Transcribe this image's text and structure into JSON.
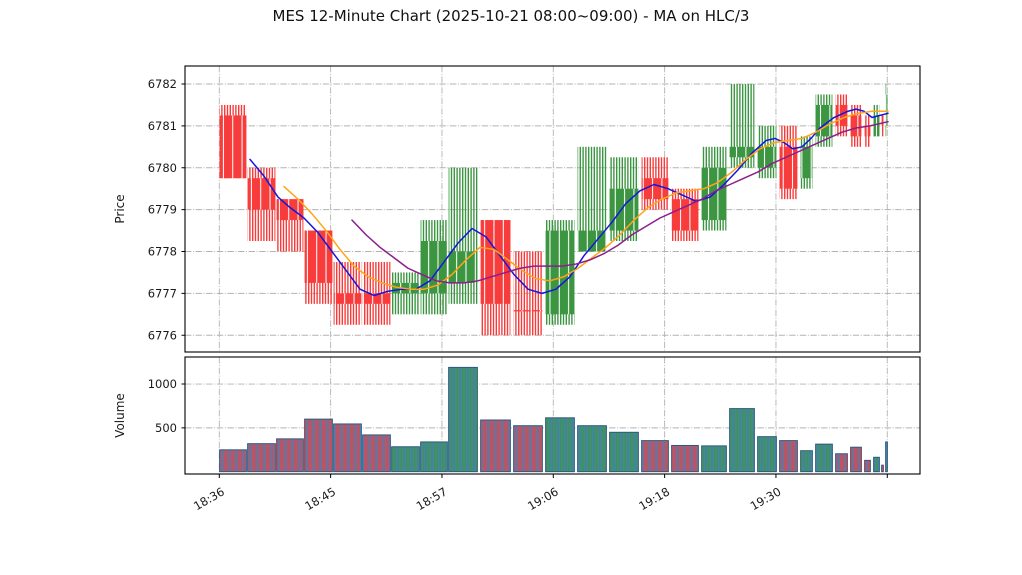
{
  "title": "MES 12-Minute Chart (2025-10-21 08:00~09:00) - MA on HLC/3",
  "price_axis": {
    "label": "Price",
    "ticks": [
      6776,
      6777,
      6778,
      6779,
      6780,
      6781,
      6782
    ]
  },
  "volume_axis": {
    "label": "Volume",
    "ticks": [
      500,
      1000
    ]
  },
  "x_axis": {
    "labels": [
      "18:36",
      "18:45",
      "18:57",
      "19:06",
      "19:18",
      "19:30"
    ],
    "unlabeled_extra_tick": true
  },
  "colors": {
    "up": "#3c9641",
    "down": "#f83b3b",
    "volume_fill": "#4682b4",
    "volume_edge": "#28547e",
    "ma_fast": "#1515dd",
    "ma_mid": "#ffa418",
    "ma_slow": "#8c1e8c",
    "grid": "#b3b3b3",
    "text": "#1a1a1a",
    "spine": "#000000"
  },
  "chart_data": {
    "type": "candlestick_with_volume",
    "title": "MES 12-Minute Chart (2025-10-21 08:00~09:00) - MA on HLC/3",
    "ylabel_price": "Price",
    "ylabel_volume": "Volume",
    "price_ylim": [
      6775.6,
      6782.43
    ],
    "volume_ylim": [
      -26,
      1308
    ],
    "grid": "dashdot",
    "candle_columns": [
      "x_px",
      "width_px",
      "dir",
      "open",
      "high",
      "low",
      "close",
      "volume"
    ],
    "candles": [
      [
        219,
        28,
        "d",
        6781.25,
        6781.5,
        6779.75,
        6779.75,
        250
      ],
      [
        247,
        29,
        "d",
        6779.75,
        6780.0,
        6778.25,
        6779.0,
        320
      ],
      [
        276,
        28,
        "d",
        6779.25,
        6779.25,
        6778.0,
        6778.75,
        375
      ],
      [
        304,
        29,
        "d",
        6778.5,
        6778.5,
        6776.75,
        6777.25,
        600
      ],
      [
        333,
        29,
        "d",
        6777.0,
        6777.75,
        6776.25,
        6776.75,
        545
      ],
      [
        362,
        29,
        "d",
        6777.0,
        6777.75,
        6776.25,
        6776.75,
        420
      ],
      [
        391,
        29,
        "u",
        6777.0,
        6777.5,
        6776.5,
        6777.25,
        285
      ],
      [
        420,
        28,
        "u",
        6777.0,
        6778.75,
        6776.5,
        6778.25,
        340
      ],
      [
        448,
        30,
        "u",
        6777.25,
        6780.0,
        6776.75,
        6778.0,
        1190
      ],
      [
        480,
        31,
        "d",
        6778.75,
        6778.75,
        6776.0,
        6776.75,
        590
      ],
      [
        513,
        30,
        "d",
        6776.6,
        6778.0,
        6776.0,
        6776.6,
        525
      ],
      [
        545,
        30,
        "u",
        6776.5,
        6778.75,
        6776.25,
        6778.5,
        615
      ],
      [
        577,
        30,
        "u",
        6778.0,
        6780.5,
        6778.0,
        6778.5,
        525
      ],
      [
        609,
        30,
        "u",
        6778.5,
        6780.25,
        6778.25,
        6779.5,
        450
      ],
      [
        641,
        28,
        "d",
        6779.75,
        6780.25,
        6779.0,
        6779.25,
        355
      ],
      [
        671,
        28,
        "d",
        6779.25,
        6779.5,
        6778.25,
        6778.5,
        300
      ],
      [
        701,
        26,
        "u",
        6778.75,
        6780.5,
        6778.5,
        6780.0,
        295
      ],
      [
        729,
        26,
        "u",
        6780.25,
        6782.0,
        6780.0,
        6780.5,
        720
      ],
      [
        757,
        20,
        "u",
        6780.0,
        6781.0,
        6779.75,
        6780.5,
        400
      ],
      [
        779,
        19,
        "d",
        6780.5,
        6781.0,
        6779.25,
        6779.5,
        355
      ],
      [
        800,
        13,
        "u",
        6779.75,
        6780.75,
        6779.5,
        6780.5,
        240
      ],
      [
        815,
        18,
        "u",
        6780.75,
        6781.75,
        6780.5,
        6781.5,
        315
      ],
      [
        835,
        13,
        "d",
        6781.5,
        6781.75,
        6780.75,
        6781.0,
        205
      ],
      [
        850,
        12,
        "d",
        6781.25,
        6781.5,
        6780.5,
        6780.75,
        280
      ],
      [
        864,
        7,
        "d",
        6781.0,
        6781.25,
        6780.5,
        6780.75,
        130
      ],
      [
        873,
        7,
        "u",
        6780.75,
        6781.5,
        6780.75,
        6781.25,
        165
      ],
      [
        881,
        3,
        "d",
        6781.25,
        6781.25,
        6780.75,
        6781.0,
        75
      ],
      [
        885,
        3,
        "u",
        6781.0,
        6782.0,
        6780.75,
        6781.75,
        340
      ]
    ],
    "ma_series": [
      {
        "name": "ma-fast",
        "color_key": "ma_fast",
        "points": [
          [
            250,
            6780.2
          ],
          [
            264,
            6779.8
          ],
          [
            278,
            6779.3
          ],
          [
            290,
            6779.05
          ],
          [
            304,
            6778.8
          ],
          [
            318,
            6778.45
          ],
          [
            332,
            6778.0
          ],
          [
            346,
            6777.55
          ],
          [
            360,
            6777.1
          ],
          [
            374,
            6776.95
          ],
          [
            388,
            6777.05
          ],
          [
            402,
            6777.1
          ],
          [
            416,
            6777.1
          ],
          [
            430,
            6777.3
          ],
          [
            444,
            6777.75
          ],
          [
            458,
            6778.2
          ],
          [
            472,
            6778.55
          ],
          [
            486,
            6778.35
          ],
          [
            500,
            6777.9
          ],
          [
            514,
            6777.45
          ],
          [
            528,
            6777.1
          ],
          [
            542,
            6777.0
          ],
          [
            556,
            6777.1
          ],
          [
            570,
            6777.4
          ],
          [
            584,
            6777.9
          ],
          [
            598,
            6778.3
          ],
          [
            612,
            6778.7
          ],
          [
            626,
            6779.15
          ],
          [
            640,
            6779.45
          ],
          [
            654,
            6779.6
          ],
          [
            668,
            6779.5
          ],
          [
            682,
            6779.35
          ],
          [
            696,
            6779.2
          ],
          [
            710,
            6779.3
          ],
          [
            724,
            6779.6
          ],
          [
            738,
            6779.95
          ],
          [
            752,
            6780.35
          ],
          [
            766,
            6780.65
          ],
          [
            775,
            6780.7
          ],
          [
            784,
            6780.6
          ],
          [
            793,
            6780.45
          ],
          [
            802,
            6780.5
          ],
          [
            811,
            6780.7
          ],
          [
            820,
            6780.95
          ],
          [
            834,
            6781.2
          ],
          [
            848,
            6781.35
          ],
          [
            856,
            6781.4
          ],
          [
            864,
            6781.35
          ],
          [
            872,
            6781.2
          ],
          [
            880,
            6781.25
          ],
          [
            888,
            6781.3
          ]
        ]
      },
      {
        "name": "ma-mid",
        "color_key": "ma_mid",
        "points": [
          [
            284,
            6779.55
          ],
          [
            298,
            6779.25
          ],
          [
            312,
            6778.9
          ],
          [
            326,
            6778.5
          ],
          [
            340,
            6778.05
          ],
          [
            354,
            6777.65
          ],
          [
            368,
            6777.4
          ],
          [
            382,
            6777.25
          ],
          [
            396,
            6777.15
          ],
          [
            410,
            6777.1
          ],
          [
            424,
            6777.1
          ],
          [
            438,
            6777.2
          ],
          [
            452,
            6777.45
          ],
          [
            466,
            6777.8
          ],
          [
            480,
            6778.1
          ],
          [
            494,
            6778.05
          ],
          [
            508,
            6777.8
          ],
          [
            522,
            6777.55
          ],
          [
            536,
            6777.35
          ],
          [
            550,
            6777.3
          ],
          [
            564,
            6777.4
          ],
          [
            578,
            6777.6
          ],
          [
            592,
            6777.85
          ],
          [
            606,
            6778.1
          ],
          [
            620,
            6778.4
          ],
          [
            634,
            6778.75
          ],
          [
            648,
            6779.05
          ],
          [
            662,
            6779.25
          ],
          [
            676,
            6779.4
          ],
          [
            690,
            6779.45
          ],
          [
            704,
            6779.5
          ],
          [
            718,
            6779.65
          ],
          [
            732,
            6779.9
          ],
          [
            746,
            6780.2
          ],
          [
            760,
            6780.45
          ],
          [
            774,
            6780.6
          ],
          [
            788,
            6780.65
          ],
          [
            802,
            6780.7
          ],
          [
            816,
            6780.85
          ],
          [
            830,
            6781.05
          ],
          [
            844,
            6781.2
          ],
          [
            858,
            6781.3
          ],
          [
            872,
            6781.35
          ],
          [
            888,
            6781.35
          ]
        ]
      },
      {
        "name": "ma-slow",
        "color_key": "ma_slow",
        "points": [
          [
            352,
            6778.75
          ],
          [
            366,
            6778.4
          ],
          [
            380,
            6778.1
          ],
          [
            394,
            6777.85
          ],
          [
            408,
            6777.6
          ],
          [
            422,
            6777.45
          ],
          [
            436,
            6777.3
          ],
          [
            450,
            6777.25
          ],
          [
            464,
            6777.25
          ],
          [
            478,
            6777.3
          ],
          [
            492,
            6777.4
          ],
          [
            506,
            6777.5
          ],
          [
            520,
            6777.6
          ],
          [
            534,
            6777.65
          ],
          [
            548,
            6777.65
          ],
          [
            562,
            6777.65
          ],
          [
            576,
            6777.7
          ],
          [
            590,
            6777.8
          ],
          [
            604,
            6777.95
          ],
          [
            618,
            6778.15
          ],
          [
            632,
            6778.4
          ],
          [
            646,
            6778.6
          ],
          [
            660,
            6778.8
          ],
          [
            674,
            6778.95
          ],
          [
            688,
            6779.1
          ],
          [
            702,
            6779.25
          ],
          [
            716,
            6779.45
          ],
          [
            730,
            6779.6
          ],
          [
            744,
            6779.75
          ],
          [
            758,
            6779.9
          ],
          [
            772,
            6780.1
          ],
          [
            786,
            6780.25
          ],
          [
            800,
            6780.4
          ],
          [
            814,
            6780.55
          ],
          [
            828,
            6780.7
          ],
          [
            842,
            6780.85
          ],
          [
            856,
            6780.95
          ],
          [
            870,
            6781.0
          ],
          [
            888,
            6781.1
          ]
        ]
      }
    ]
  }
}
